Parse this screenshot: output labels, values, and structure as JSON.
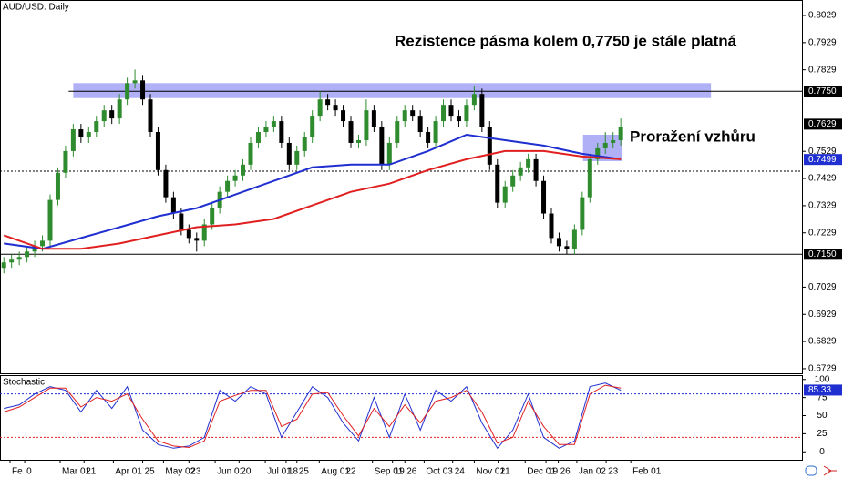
{
  "chart_data": {
    "type": "candlestick",
    "title": "AUD/USD: Daily",
    "xlim": [
      -0.5,
      103.5
    ],
    "ylim": [
      0.6712,
      0.8086
    ],
    "yticks": [
      0.8029,
      0.7929,
      0.7829,
      0.7529,
      0.7429,
      0.7329,
      0.7229,
      0.7029,
      0.6929,
      0.6829,
      0.6729
    ],
    "xticks": [
      {
        "value": 0.8,
        "label": "Fe"
      },
      {
        "value": 2.7,
        "label": "0"
      },
      {
        "value": 7.3,
        "label": "Mar 01"
      },
      {
        "value": 10.4,
        "label": "21"
      },
      {
        "value": 14.2,
        "label": "Apr 01"
      },
      {
        "value": 18,
        "label": "25"
      },
      {
        "value": 20.7,
        "label": "May 02"
      },
      {
        "value": 24,
        "label": "23"
      },
      {
        "value": 27.4,
        "label": "Jun 01"
      },
      {
        "value": 30.5,
        "label": "20"
      },
      {
        "value": 33.9,
        "label": "Jul 01"
      },
      {
        "value": 36.6,
        "label": "18"
      },
      {
        "value": 38,
        "label": "25"
      },
      {
        "value": 40.9,
        "label": "Aug 01"
      },
      {
        "value": 44.1,
        "label": "22"
      },
      {
        "value": 47.8,
        "label": "Sep 01"
      },
      {
        "value": 50.4,
        "label": "19"
      },
      {
        "value": 52,
        "label": "26"
      },
      {
        "value": 54.5,
        "label": "Oct 03"
      },
      {
        "value": 58.2,
        "label": "24"
      },
      {
        "value": 61,
        "label": "Nov 01"
      },
      {
        "value": 64.1,
        "label": "21"
      },
      {
        "value": 67.6,
        "label": "Dec 01"
      },
      {
        "value": 70.3,
        "label": "19"
      },
      {
        "value": 71.9,
        "label": "26"
      },
      {
        "value": 74.3,
        "label": "Jan 02"
      },
      {
        "value": 78.1,
        "label": "23"
      },
      {
        "value": 81.3,
        "label": "Feb 01"
      }
    ],
    "up_color": "#2e8b2e",
    "down_color": "#000000",
    "open": [
      0.71,
      0.712,
      0.713,
      0.714,
      0.716,
      0.718,
      0.72,
      0.735,
      0.745,
      0.753,
      0.761,
      0.758,
      0.76,
      0.764,
      0.768,
      0.765,
      0.772,
      0.778,
      0.779,
      0.772,
      0.76,
      0.746,
      0.736,
      0.73,
      0.724,
      0.721,
      0.72,
      0.726,
      0.732,
      0.738,
      0.742,
      0.744,
      0.748,
      0.756,
      0.76,
      0.762,
      0.764,
      0.756,
      0.748,
      0.753,
      0.758,
      0.766,
      0.772,
      0.77,
      0.768,
      0.764,
      0.756,
      0.757,
      0.768,
      0.762,
      0.748,
      0.756,
      0.764,
      0.768,
      0.766,
      0.76,
      0.756,
      0.764,
      0.77,
      0.766,
      0.764,
      0.77,
      0.774,
      0.762,
      0.748,
      0.734,
      0.74,
      0.744,
      0.747,
      0.75,
      0.742,
      0.73,
      0.721,
      0.718,
      0.717,
      0.724,
      0.736,
      0.75,
      0.754,
      0.756,
      0.757
    ],
    "high": [
      0.714,
      0.715,
      0.716,
      0.718,
      0.72,
      0.722,
      0.737,
      0.747,
      0.755,
      0.763,
      0.763,
      0.762,
      0.766,
      0.77,
      0.77,
      0.774,
      0.78,
      0.783,
      0.781,
      0.774,
      0.762,
      0.748,
      0.738,
      0.732,
      0.726,
      0.723,
      0.728,
      0.734,
      0.74,
      0.744,
      0.746,
      0.75,
      0.758,
      0.762,
      0.764,
      0.766,
      0.766,
      0.758,
      0.755,
      0.76,
      0.768,
      0.775,
      0.774,
      0.772,
      0.77,
      0.766,
      0.759,
      0.772,
      0.77,
      0.764,
      0.758,
      0.766,
      0.77,
      0.77,
      0.768,
      0.762,
      0.766,
      0.772,
      0.772,
      0.768,
      0.772,
      0.777,
      0.776,
      0.764,
      0.75,
      0.742,
      0.746,
      0.749,
      0.752,
      0.752,
      0.744,
      0.732,
      0.723,
      0.72,
      0.726,
      0.738,
      0.752,
      0.756,
      0.76,
      0.76,
      0.765
    ],
    "low": [
      0.708,
      0.71,
      0.711,
      0.712,
      0.714,
      0.716,
      0.718,
      0.733,
      0.743,
      0.751,
      0.756,
      0.756,
      0.758,
      0.762,
      0.763,
      0.763,
      0.77,
      0.776,
      0.77,
      0.758,
      0.744,
      0.734,
      0.728,
      0.722,
      0.719,
      0.716,
      0.718,
      0.724,
      0.73,
      0.736,
      0.74,
      0.742,
      0.746,
      0.754,
      0.758,
      0.76,
      0.754,
      0.746,
      0.746,
      0.751,
      0.756,
      0.764,
      0.768,
      0.766,
      0.762,
      0.754,
      0.754,
      0.755,
      0.76,
      0.746,
      0.746,
      0.754,
      0.762,
      0.764,
      0.758,
      0.754,
      0.754,
      0.762,
      0.764,
      0.762,
      0.762,
      0.768,
      0.76,
      0.746,
      0.732,
      0.732,
      0.738,
      0.742,
      0.745,
      0.74,
      0.728,
      0.719,
      0.716,
      0.715,
      0.715,
      0.722,
      0.734,
      0.748,
      0.752,
      0.754,
      0.755
    ],
    "close": [
      0.712,
      0.713,
      0.714,
      0.716,
      0.718,
      0.72,
      0.735,
      0.745,
      0.753,
      0.761,
      0.758,
      0.76,
      0.764,
      0.768,
      0.765,
      0.772,
      0.778,
      0.779,
      0.772,
      0.76,
      0.746,
      0.736,
      0.73,
      0.724,
      0.721,
      0.72,
      0.726,
      0.732,
      0.738,
      0.742,
      0.744,
      0.748,
      0.756,
      0.76,
      0.762,
      0.764,
      0.756,
      0.748,
      0.753,
      0.758,
      0.766,
      0.772,
      0.77,
      0.768,
      0.764,
      0.756,
      0.757,
      0.768,
      0.762,
      0.748,
      0.756,
      0.764,
      0.768,
      0.766,
      0.76,
      0.756,
      0.764,
      0.77,
      0.766,
      0.764,
      0.77,
      0.774,
      0.762,
      0.748,
      0.734,
      0.74,
      0.744,
      0.747,
      0.75,
      0.742,
      0.73,
      0.721,
      0.718,
      0.717,
      0.724,
      0.736,
      0.75,
      0.754,
      0.756,
      0.757,
      0.762
    ],
    "moving_averages": [
      {
        "color": "#1f2fd0",
        "x": [
          0,
          5,
          10,
          15,
          20,
          25,
          30,
          35,
          40,
          45,
          50,
          55,
          60,
          65,
          70,
          75,
          80
        ],
        "values": [
          0.719,
          0.717,
          0.721,
          0.725,
          0.729,
          0.732,
          0.737,
          0.742,
          0.747,
          0.748,
          0.748,
          0.753,
          0.759,
          0.757,
          0.755,
          0.752,
          0.75
        ]
      },
      {
        "color": "#e02020",
        "x": [
          0,
          5,
          10,
          15,
          20,
          25,
          30,
          35,
          40,
          45,
          50,
          55,
          60,
          65,
          70,
          75,
          80
        ],
        "values": [
          0.722,
          0.717,
          0.717,
          0.719,
          0.722,
          0.725,
          0.726,
          0.728,
          0.733,
          0.738,
          0.741,
          0.746,
          0.75,
          0.753,
          0.753,
          0.751,
          0.75
        ]
      }
    ],
    "levels": [
      {
        "value": 0.775,
        "from": 8.4,
        "to": 103.5,
        "color": "#000000",
        "dash": false
      },
      {
        "value": 0.7456,
        "from": -0.5,
        "to": 103.5,
        "color": "#000000",
        "dash": true
      },
      {
        "value": 0.715,
        "from": -0.5,
        "to": 103.5,
        "color": "#000000",
        "dash": false
      }
    ],
    "zones": [
      {
        "x": [
          9,
          91.7
        ],
        "y": [
          0.7725,
          0.778
        ],
        "color": "#6f6ff0"
      },
      {
        "x": [
          75.1,
          80.1
        ],
        "y": [
          0.7493,
          0.759
        ],
        "color": "#6f6ff0"
      }
    ],
    "price_labels": [
      {
        "value": 0.775,
        "label": "0.7750",
        "color": "#000000"
      },
      {
        "value": 0.7629,
        "color": "#000000"
      },
      {
        "value": 0.7499,
        "color": "#1f2fd0"
      },
      {
        "value": 0.715,
        "label": "0.7150",
        "color": "#000000"
      }
    ],
    "annotations": [
      "Rezistence pásma kolem 0,7750 je stále platná",
      "Proražení vzhůru"
    ],
    "stochastic": {
      "title": "Stochastic",
      "ylim": [
        -11,
        106
      ],
      "yticks": [
        100,
        75,
        50,
        25,
        0
      ],
      "levels": [
        {
          "value": 80,
          "color": "#1f2fd0"
        },
        {
          "value": 20,
          "color": "#e02020"
        }
      ],
      "last_label": 85.33,
      "series": [
        {
          "color": "#1f2fd0",
          "x": [
            0,
            2,
            4,
            6,
            8,
            10,
            12,
            14,
            16,
            18,
            20,
            22,
            24,
            26,
            28,
            30,
            32,
            34,
            36,
            38,
            40,
            42,
            44,
            46,
            48,
            50,
            52,
            54,
            56,
            58,
            60,
            62,
            64,
            66,
            68,
            70,
            72,
            74,
            76,
            78,
            80
          ],
          "values": [
            60,
            65,
            80,
            90,
            85,
            55,
            85,
            60,
            90,
            30,
            10,
            5,
            8,
            20,
            85,
            70,
            90,
            80,
            20,
            55,
            90,
            75,
            40,
            15,
            75,
            20,
            80,
            30,
            85,
            70,
            90,
            40,
            5,
            30,
            80,
            20,
            5,
            15,
            90,
            95,
            85
          ]
        },
        {
          "color": "#e02020",
          "x": [
            0,
            2,
            4,
            6,
            8,
            10,
            12,
            14,
            16,
            18,
            20,
            22,
            24,
            26,
            28,
            30,
            32,
            34,
            36,
            38,
            40,
            42,
            44,
            46,
            48,
            50,
            52,
            54,
            56,
            58,
            60,
            62,
            64,
            66,
            68,
            70,
            72,
            74,
            76,
            78,
            80
          ],
          "values": [
            55,
            62,
            75,
            88,
            88,
            62,
            75,
            70,
            80,
            45,
            15,
            8,
            6,
            15,
            70,
            78,
            85,
            85,
            35,
            45,
            80,
            82,
            50,
            22,
            60,
            35,
            65,
            40,
            70,
            75,
            85,
            55,
            12,
            20,
            70,
            35,
            10,
            10,
            80,
            92,
            88
          ]
        }
      ]
    }
  }
}
